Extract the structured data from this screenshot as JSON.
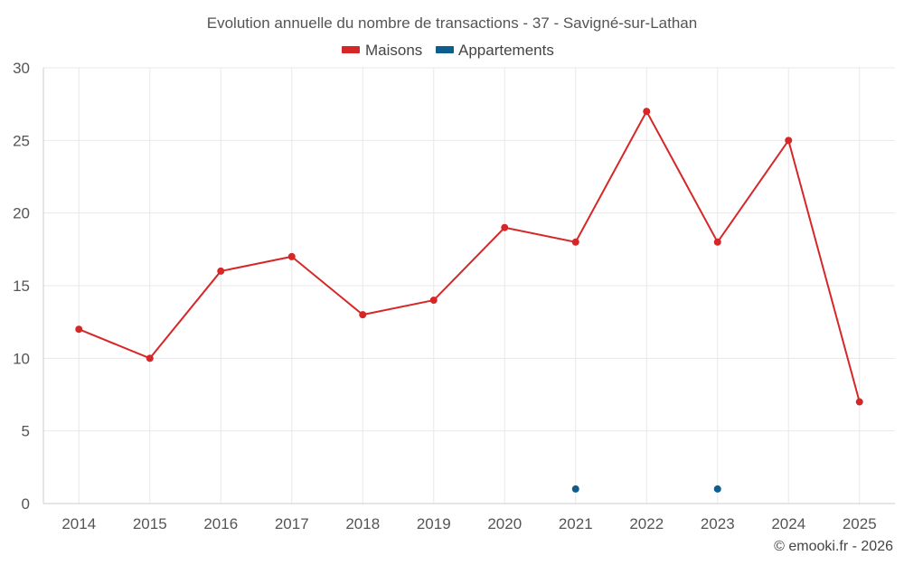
{
  "chart_data": {
    "type": "line",
    "title": "Evolution annuelle du nombre de transactions - 37 - Savigné-sur-Lathan",
    "categories": [
      "2014",
      "2015",
      "2016",
      "2017",
      "2018",
      "2019",
      "2020",
      "2021",
      "2022",
      "2023",
      "2024",
      "2025"
    ],
    "series": [
      {
        "name": "Maisons",
        "color": "#d62728",
        "values": [
          12,
          10,
          16,
          17,
          13,
          14,
          19,
          18,
          27,
          18,
          25,
          7
        ]
      },
      {
        "name": "Appartements",
        "color": "#0b5e8e",
        "values": [
          null,
          null,
          null,
          null,
          null,
          null,
          null,
          1,
          null,
          1,
          null,
          null
        ]
      }
    ],
    "ylim": [
      0,
      30
    ],
    "yticks": [
      0,
      5,
      10,
      15,
      20,
      25,
      30
    ],
    "xlabel": "",
    "ylabel": "",
    "grid": true,
    "legend_position": "top-center"
  },
  "credit": "© emooki.fr - 2026"
}
